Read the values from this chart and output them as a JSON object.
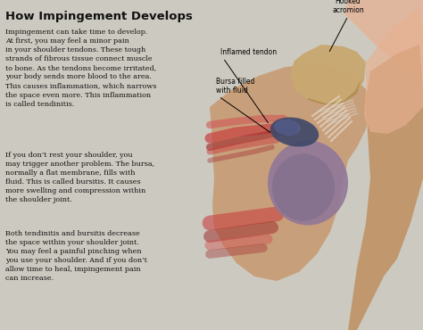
{
  "title": "How Impingement Develops",
  "background_color": "#cccac0",
  "title_color": "#111111",
  "text_color": "#111111",
  "title_fontsize": 9.5,
  "body_fontsize": 5.8,
  "label_fontsize": 5.5,
  "paragraph1_plain": "Impingement can take time to develop.\nAt first, you may feel a minor pain\nin your shoulder tendons. These tough\nstrands of fibrous tissue connect muscle\nto bone. As the tendons become irritated,\nyour body sends more blood to the area.\nThis causes inflammation, which narrows\nthe space even more. This inflammation\nis called ",
  "paragraph1_bold": "tendinitis.",
  "paragraph2_plain": "If you don’t rest your shoulder, you\nmay trigger another problem. The bursa,\nnormally a flat membrane, fills with\nfluid. This is called ",
  "paragraph2_bold": "bursitis.",
  "paragraph2_tail": " It causes\nmore swelling and compression within\nthe shoulder joint.",
  "paragraph3": "Both tendinitis and bursitis decrease\nthe space within your shoulder joint.\nYou may feel a painful pinching when\nyou use your shoulder. And if you don’t\nallow time to heal, impingement pain\ncan increase.",
  "label_hooked": "Hooked\nacromion",
  "label_inflamed": "Inflamed tendon",
  "label_bursa": "Bursa filled\nwith fluid",
  "anatomy_bg": "#c8c0b8",
  "muscle_tan": "#c8956a",
  "muscle_dark": "#a07040",
  "muscle_red1": "#c84040",
  "muscle_red2": "#a03030",
  "muscle_pink": "#e8b090",
  "bursa_color": "#404868",
  "humerus_color": "#907898",
  "acromion_color": "#c8a870",
  "scapula_color": "#c09060",
  "tendon_white": "#e8e4d8"
}
